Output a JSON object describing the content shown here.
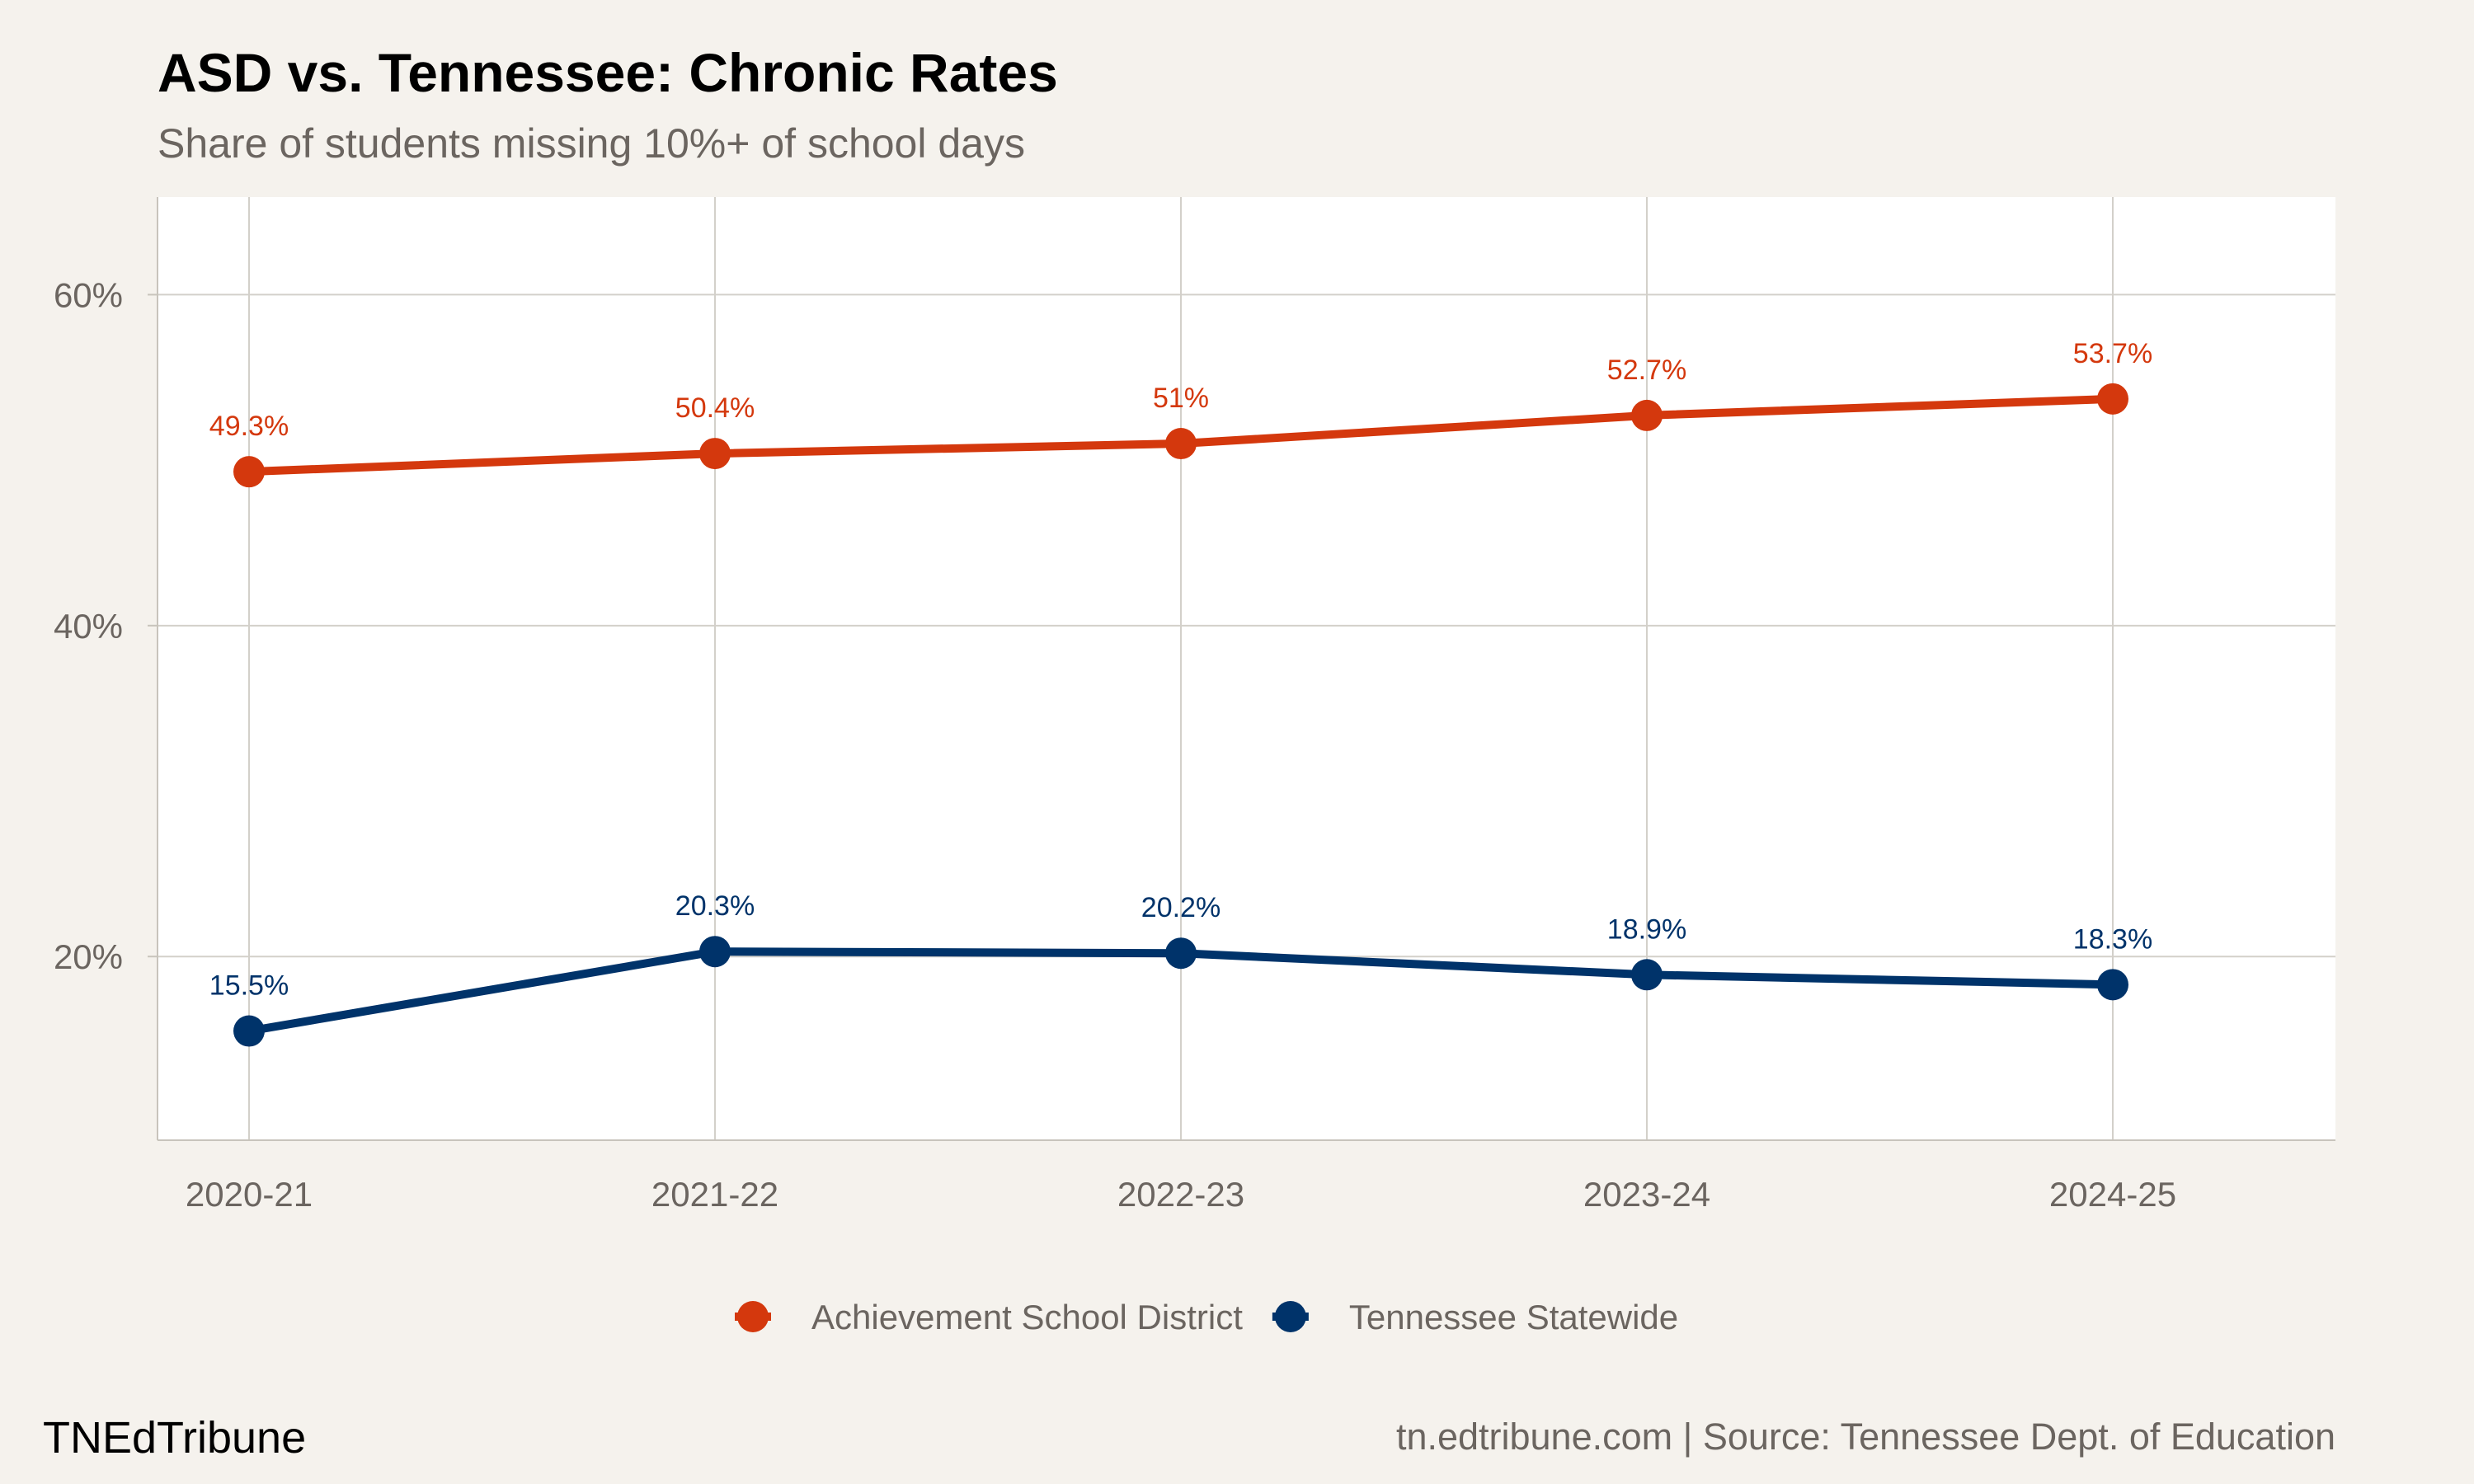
{
  "chart_data": {
    "type": "line",
    "title": "ASD vs. Tennessee: Chronic Rates",
    "subtitle": "Share of students missing 10%+ of school days",
    "xlabel": "",
    "ylabel": "",
    "categories": [
      "2020-21",
      "2021-22",
      "2022-23",
      "2023-24",
      "2024-25"
    ],
    "ylim": [
      8.9,
      65.9
    ],
    "yticks": [
      20,
      40,
      60
    ],
    "ytick_labels": [
      "20%",
      "40%",
      "60%"
    ],
    "grid": true,
    "legend_position": "bottom",
    "series": [
      {
        "name": "Achievement School District",
        "color": "#d4380d",
        "values": [
          49.3,
          50.4,
          51.0,
          52.7,
          53.7
        ],
        "labels": [
          "49.3%",
          "50.4%",
          "51%",
          "52.7%",
          "53.7%"
        ]
      },
      {
        "name": "Tennessee Statewide",
        "color": "#00336a",
        "values": [
          15.5,
          20.3,
          20.2,
          18.9,
          18.3
        ],
        "labels": [
          "15.5%",
          "20.3%",
          "20.2%",
          "18.9%",
          "18.3%"
        ]
      }
    ]
  },
  "footer": {
    "brand": "TNEdTribune",
    "source": "tn.edtribune.com | Source: Tennessee Dept. of Education"
  }
}
